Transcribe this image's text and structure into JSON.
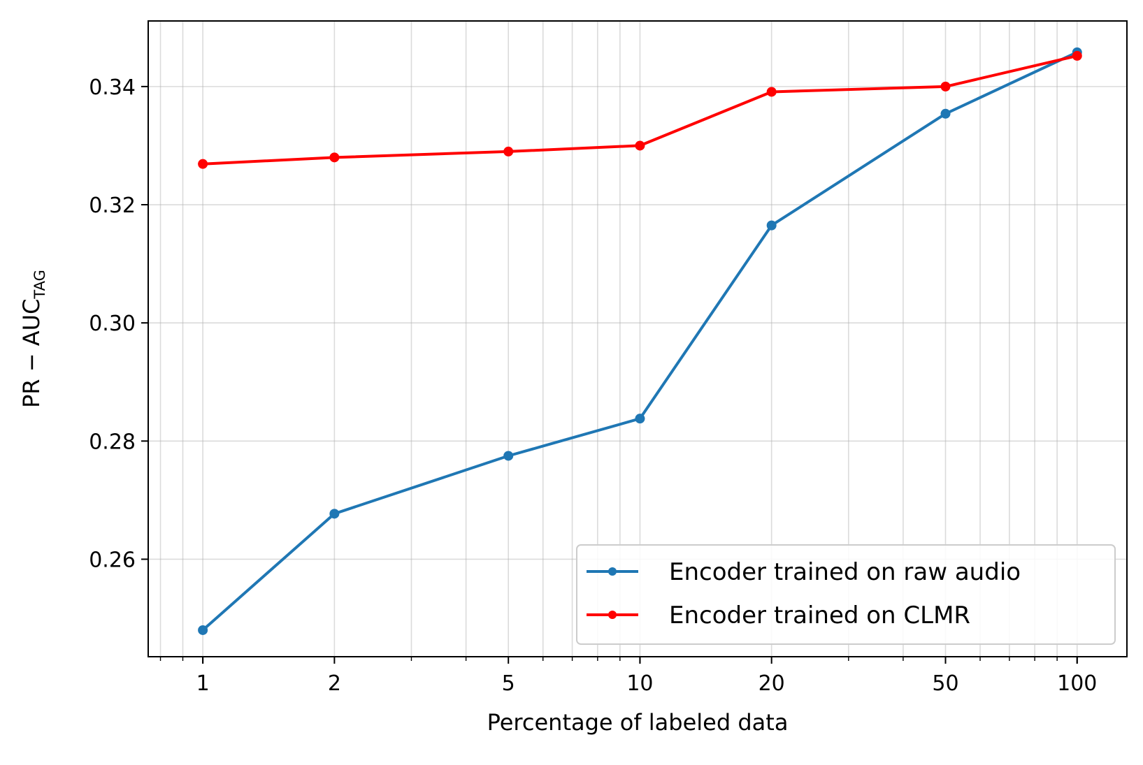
{
  "chart_data": {
    "type": "line",
    "x_scale": "log",
    "x": [
      1,
      2,
      5,
      10,
      20,
      50,
      100
    ],
    "x_tick_labels": [
      "1",
      "2",
      "5",
      "10",
      "20",
      "50",
      "100"
    ],
    "xlabel": "Percentage of labeled data",
    "ylabel_main": "PR − AUC",
    "ylabel_sub": "TAG",
    "xlim": [
      0.75,
      130
    ],
    "ylim": [
      0.2435,
      0.3511
    ],
    "y_ticks": [
      0.26,
      0.28,
      0.3,
      0.32,
      0.34
    ],
    "y_tick_labels": [
      "0.26",
      "0.28",
      "0.30",
      "0.32",
      "0.34"
    ],
    "grid": true,
    "legend_position": "lower-right",
    "series": [
      {
        "name": "Encoder trained on raw audio",
        "color": "#1f77b4",
        "values": [
          0.248,
          0.2677,
          0.2775,
          0.2838,
          0.3165,
          0.3354,
          0.3458
        ]
      },
      {
        "name": "Encoder trained on CLMR",
        "color": "#ff0000",
        "values": [
          0.3269,
          0.328,
          0.329,
          0.33,
          0.3391,
          0.34,
          0.3452
        ]
      }
    ]
  }
}
